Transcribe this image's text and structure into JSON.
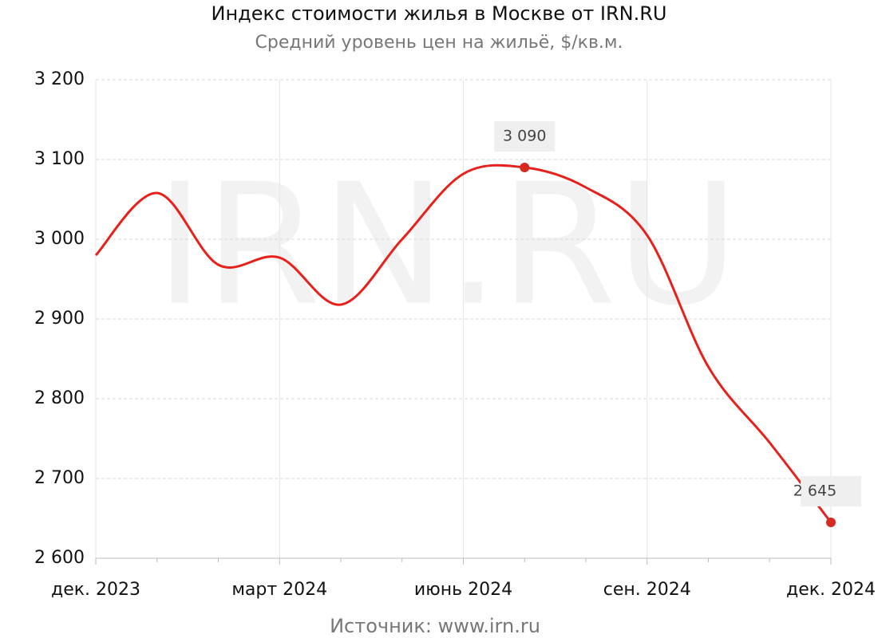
{
  "chart_data": {
    "type": "line",
    "title": "Индекс стоимости жилья в Москве от IRN.RU",
    "subtitle": "Средний уровень цен на жильё, $/кв.м.",
    "source": "Источник:  www.irn.ru",
    "watermark": "IRN.RU",
    "categories": [
      "дек. 2023",
      null,
      null,
      "март 2024",
      null,
      null,
      "июнь 2024",
      null,
      null,
      "сен. 2024",
      null,
      null,
      "дек. 2024"
    ],
    "values": [
      2980,
      3058,
      2968,
      2977,
      2918,
      3000,
      3082,
      3090,
      3065,
      3005,
      2840,
      2745,
      2645
    ],
    "value_labels": [
      null,
      null,
      null,
      null,
      null,
      null,
      null,
      "3 090",
      null,
      null,
      null,
      null,
      "2 645"
    ],
    "color": "#e8201a",
    "ylim": [
      2600,
      3200
    ],
    "yticks": [
      {
        "value": 2600,
        "label": "2 600"
      },
      {
        "value": 2700,
        "label": "2 700"
      },
      {
        "value": 2800,
        "label": "2 800"
      },
      {
        "value": 2900,
        "label": "2 900"
      },
      {
        "value": 3000,
        "label": "3 000"
      },
      {
        "value": 3100,
        "label": "3 100"
      },
      {
        "value": 3200,
        "label": "3 200"
      }
    ],
    "grid": true
  }
}
